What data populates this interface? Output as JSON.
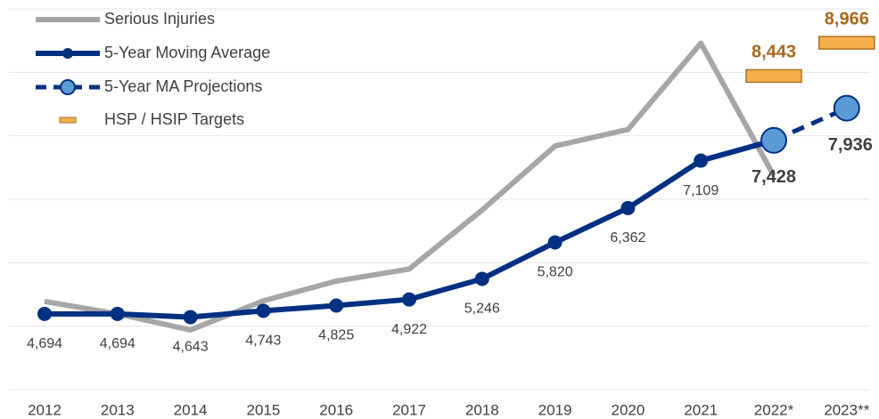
{
  "chart_data": {
    "type": "line",
    "categories": [
      "2012",
      "2013",
      "2014",
      "2015",
      "2016",
      "2017",
      "2018",
      "2019",
      "2020",
      "2021",
      "2022*",
      "2023**"
    ],
    "ylim": [
      3500,
      9500
    ],
    "yticks": [
      3500,
      4500,
      5500,
      6500,
      7500,
      8500,
      9500
    ],
    "grid": true,
    "legend": "top-left",
    "series": [
      {
        "name": "Serious Injuries",
        "type": "line",
        "color": "#a6a6a6",
        "values": [
          4890,
          4694,
          4440,
          4900,
          5210,
          5400,
          6330,
          7340,
          7600,
          8960,
          6870,
          null
        ]
      },
      {
        "name": "5-Year Moving Average",
        "type": "line-marker",
        "color": "#003082",
        "values": [
          4694,
          4694,
          4643,
          4743,
          4825,
          4922,
          5246,
          5820,
          6362,
          7109,
          7428,
          null
        ],
        "value_labels": [
          "4,694",
          "4,694",
          "4,643",
          "4,743",
          "4,825",
          "4,922",
          "5,246",
          "5,820",
          "6,362",
          "7,109",
          null,
          null
        ]
      },
      {
        "name": "5-Year MA Projections",
        "type": "dashed-marker",
        "color": "#003082",
        "marker_color": "#5b9bd5",
        "values": [
          null,
          null,
          null,
          null,
          null,
          null,
          null,
          null,
          null,
          null,
          7428,
          7936
        ],
        "value_labels": [
          null,
          null,
          null,
          null,
          null,
          null,
          null,
          null,
          null,
          null,
          "7,428",
          "7,936"
        ]
      },
      {
        "name": "HSP / HSIP Targets",
        "type": "target",
        "color": "#f5b04a",
        "edge_color": "#b07020",
        "values": [
          null,
          null,
          null,
          null,
          null,
          null,
          null,
          null,
          null,
          null,
          8443,
          8966
        ],
        "value_labels": [
          null,
          null,
          null,
          null,
          null,
          null,
          null,
          null,
          null,
          null,
          "8,443",
          "8,966"
        ]
      }
    ]
  }
}
